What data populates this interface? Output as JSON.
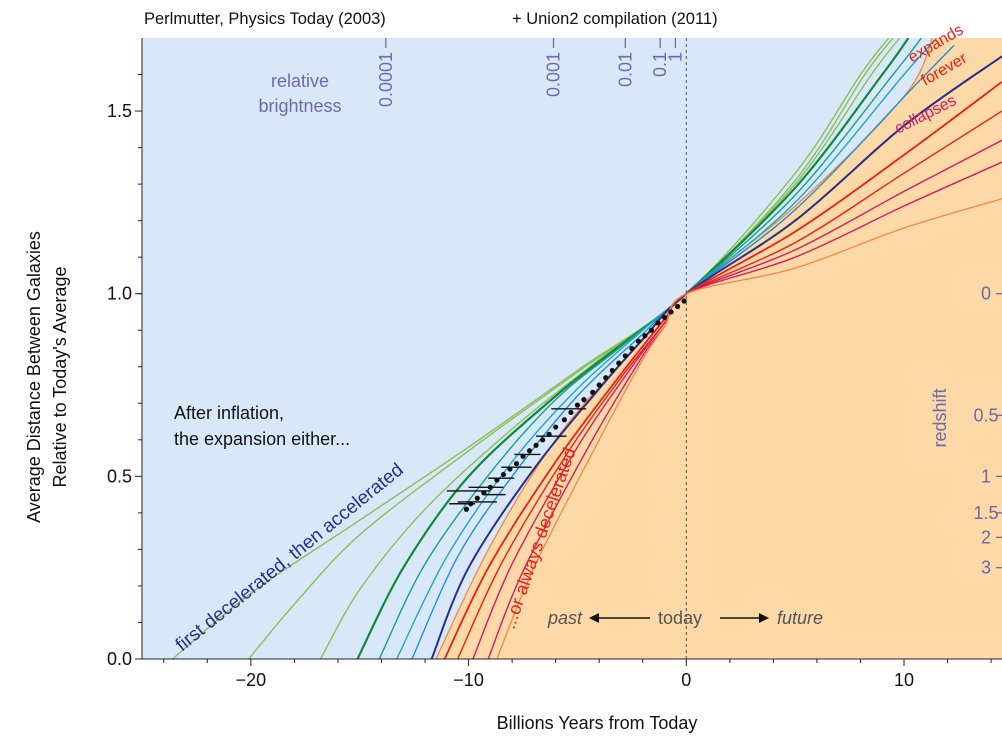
{
  "titles": {
    "left": "Perlmutter, Physics Today (2003)",
    "right": "+ Union2 compilation (2011)"
  },
  "colors": {
    "past_region": "#d9e8f8",
    "future_region": "#fcd9a6",
    "annotation_blue": "#6e6aa8",
    "decelerated_red": "#e8201a",
    "accelerated_navy": "#2a2f8c",
    "collapses_magenta": "#d81b60"
  },
  "chart_data": {
    "type": "line",
    "xlabel": "Billions Years from Today",
    "ylabel": [
      "Average Distance Between Galaxies",
      "Relative to Today's Average"
    ],
    "xlim": [
      -25,
      14.5
    ],
    "ylim": [
      0.0,
      1.7
    ],
    "x_ticks": [
      -20,
      -10,
      0,
      10
    ],
    "x_tick_labels": [
      "−20",
      "−10",
      "0",
      "10"
    ],
    "y_ticks": [
      0.0,
      0.5,
      1.0,
      1.5
    ],
    "y_tick_labels": [
      "0.0",
      "0.5",
      "1.0",
      "1.5"
    ],
    "grid": false,
    "today_marker_x": 0,
    "series": [
      {
        "color": "#88c057",
        "width": 1.4,
        "points": [
          [
            -23.6,
            0
          ],
          [
            -20,
            0.18
          ],
          [
            -15,
            0.38
          ],
          [
            -10,
            0.58
          ],
          [
            -5,
            0.79
          ],
          [
            0,
            1
          ],
          [
            5,
            1.33
          ],
          [
            8,
            1.6
          ],
          [
            9.3,
            1.7
          ]
        ]
      },
      {
        "color": "#88c057",
        "width": 1.4,
        "points": [
          [
            -20.1,
            0
          ],
          [
            -18,
            0.15
          ],
          [
            -15,
            0.34
          ],
          [
            -10,
            0.57
          ],
          [
            -5,
            0.785
          ],
          [
            0,
            1
          ],
          [
            5,
            1.31
          ],
          [
            8.2,
            1.6
          ],
          [
            9.5,
            1.7
          ]
        ]
      },
      {
        "color": "#88c057",
        "width": 1.4,
        "points": [
          [
            -16.8,
            0
          ],
          [
            -15,
            0.19
          ],
          [
            -12,
            0.41
          ],
          [
            -8,
            0.63
          ],
          [
            -4,
            0.82
          ],
          [
            0,
            1
          ],
          [
            5,
            1.3
          ],
          [
            8.5,
            1.6
          ],
          [
            9.8,
            1.7
          ]
        ]
      },
      {
        "color": "#0f8a3c",
        "width": 2.2,
        "points": [
          [
            -15.1,
            0
          ],
          [
            -13,
            0.25
          ],
          [
            -10,
            0.5
          ],
          [
            -6,
            0.72
          ],
          [
            -3,
            0.86
          ],
          [
            0,
            1
          ],
          [
            5,
            1.29
          ],
          [
            9,
            1.6
          ],
          [
            10.2,
            1.7
          ]
        ]
      },
      {
        "color": "#15a08a",
        "width": 1.4,
        "points": [
          [
            -14.1,
            0
          ],
          [
            -12,
            0.26
          ],
          [
            -9,
            0.51
          ],
          [
            -6,
            0.71
          ],
          [
            -3,
            0.855
          ],
          [
            0,
            1
          ],
          [
            5,
            1.27
          ],
          [
            9.5,
            1.6
          ],
          [
            10.8,
            1.7
          ]
        ]
      },
      {
        "color": "#1aa7c9",
        "width": 1.4,
        "points": [
          [
            -13.3,
            0
          ],
          [
            -11,
            0.28
          ],
          [
            -8,
            0.54
          ],
          [
            -5,
            0.74
          ],
          [
            -2,
            0.9
          ],
          [
            0,
            1
          ],
          [
            5,
            1.25
          ],
          [
            10,
            1.6
          ],
          [
            11.5,
            1.7
          ]
        ]
      },
      {
        "color": "#1e90d6",
        "width": 1.4,
        "points": [
          [
            -12.6,
            0
          ],
          [
            -10.5,
            0.28
          ],
          [
            -8,
            0.5
          ],
          [
            -5,
            0.72
          ],
          [
            -2,
            0.89
          ],
          [
            0,
            1
          ],
          [
            5,
            1.23
          ],
          [
            10.5,
            1.57
          ],
          [
            12.3,
            1.68
          ]
        ]
      },
      {
        "color": "#2a2f8c",
        "width": 2.0,
        "points": [
          [
            -11.7,
            0
          ],
          [
            -10,
            0.25
          ],
          [
            -7,
            0.52
          ],
          [
            -4,
            0.74
          ],
          [
            -2,
            0.875
          ],
          [
            0,
            1
          ],
          [
            5,
            1.2
          ],
          [
            10,
            1.46
          ],
          [
            14.5,
            1.65
          ]
        ]
      },
      {
        "color": "#e8201a",
        "width": 1.8,
        "points": [
          [
            -11.1,
            0
          ],
          [
            -9,
            0.26
          ],
          [
            -6,
            0.54
          ],
          [
            -3,
            0.78
          ],
          [
            -1,
            0.93
          ],
          [
            0,
            1
          ],
          [
            5,
            1.17
          ],
          [
            10,
            1.38
          ],
          [
            14.5,
            1.58
          ]
        ]
      },
      {
        "color": "#e8201a",
        "width": 1.4,
        "points": [
          [
            -10.5,
            0
          ],
          [
            -8.5,
            0.26
          ],
          [
            -5.5,
            0.56
          ],
          [
            -3,
            0.77
          ],
          [
            -1,
            0.92
          ],
          [
            0,
            1
          ],
          [
            5,
            1.14
          ],
          [
            10,
            1.33
          ],
          [
            14.5,
            1.5
          ]
        ]
      },
      {
        "color": "#d81b60",
        "width": 1.4,
        "points": [
          [
            -9.8,
            0
          ],
          [
            -8,
            0.26
          ],
          [
            -5,
            0.58
          ],
          [
            -2.5,
            0.8
          ],
          [
            -1,
            0.92
          ],
          [
            0,
            1
          ],
          [
            5,
            1.12
          ],
          [
            10,
            1.28
          ],
          [
            14.5,
            1.42
          ]
        ]
      },
      {
        "color": "#d81b60",
        "width": 1.4,
        "points": [
          [
            -9.1,
            0
          ],
          [
            -7.5,
            0.24
          ],
          [
            -4.5,
            0.58
          ],
          [
            -2,
            0.83
          ],
          [
            -1,
            0.91
          ],
          [
            0,
            1
          ],
          [
            5,
            1.1
          ],
          [
            10,
            1.24
          ],
          [
            14.5,
            1.36
          ]
        ]
      },
      {
        "color": "#f2874a",
        "width": 1.3,
        "points": [
          [
            -8.7,
            0
          ],
          [
            -7,
            0.25
          ],
          [
            -4,
            0.6
          ],
          [
            -2,
            0.82
          ],
          [
            -1,
            0.91
          ],
          [
            0,
            1
          ],
          [
            5,
            1.07
          ],
          [
            10,
            1.18
          ],
          [
            14.5,
            1.26
          ]
        ]
      }
    ],
    "future_boundary": {
      "color": "#f2874a",
      "points": [
        [
          -11.5,
          0
        ],
        [
          -9,
          0.31
        ],
        [
          -6,
          0.6
        ],
        [
          -3,
          0.81
        ],
        [
          0,
          1
        ],
        [
          5,
          1.24
        ],
        [
          10,
          1.54
        ],
        [
          11.3,
          1.7
        ]
      ]
    },
    "observations": {
      "dots": [
        [
          -0.1,
          0.98
        ],
        [
          -0.4,
          0.965
        ],
        [
          -0.7,
          0.95
        ],
        [
          -1.0,
          0.935
        ],
        [
          -1.3,
          0.92
        ],
        [
          -1.6,
          0.9
        ],
        [
          -1.9,
          0.885
        ],
        [
          -2.2,
          0.87
        ],
        [
          -2.5,
          0.85
        ],
        [
          -2.8,
          0.83
        ],
        [
          -3.1,
          0.81
        ],
        [
          -3.4,
          0.79
        ],
        [
          -3.7,
          0.77
        ],
        [
          -4.0,
          0.75
        ],
        [
          -4.3,
          0.73
        ],
        [
          -4.7,
          0.71
        ],
        [
          -5.0,
          0.695
        ],
        [
          -5.3,
          0.675
        ],
        [
          -5.6,
          0.655
        ],
        [
          -6.0,
          0.635
        ],
        [
          -6.3,
          0.615
        ],
        [
          -6.6,
          0.6
        ],
        [
          -6.9,
          0.585
        ],
        [
          -7.2,
          0.57
        ],
        [
          -7.5,
          0.555
        ],
        [
          -7.8,
          0.535
        ],
        [
          -8.1,
          0.52
        ],
        [
          -8.4,
          0.505
        ],
        [
          -8.7,
          0.49
        ],
        [
          -9.0,
          0.47
        ],
        [
          -9.3,
          0.455
        ],
        [
          -9.6,
          0.44
        ],
        [
          -9.9,
          0.425
        ],
        [
          -10.1,
          0.41
        ]
      ],
      "error_bars": [
        [
          -5.4,
          0.685,
          0.8
        ],
        [
          -6.2,
          0.61,
          0.7
        ],
        [
          -7.3,
          0.56,
          0.6
        ],
        [
          -7.8,
          0.525,
          0.7
        ],
        [
          -8.5,
          0.495,
          0.6
        ],
        [
          -9.2,
          0.47,
          0.8
        ],
        [
          -10.0,
          0.46,
          1.0
        ],
        [
          -9.6,
          0.43,
          0.9
        ],
        [
          -10.3,
          0.425,
          0.6
        ],
        [
          -8.8,
          0.45,
          0.5
        ]
      ]
    },
    "brightness_labels": [
      "0.0001",
      "0.001",
      "0.01",
      "0.1",
      "1"
    ],
    "brightness_tick_x": [
      -13.8,
      -6.1,
      -2.8,
      -1.2,
      -0.5
    ],
    "redshift_labels": [
      "0",
      "0.5",
      "1",
      "1.5",
      "2",
      "3"
    ],
    "redshift_y": [
      1.0,
      0.667,
      0.5,
      0.4,
      0.333,
      0.25
    ],
    "annotations": {
      "relative_brightness": [
        "relative",
        "brightness"
      ],
      "redshift": "redshift",
      "after_inflation": [
        "After inflation,",
        "the expansion either..."
      ],
      "first_decelerated": "first decelerated, then accelerated",
      "or_always_decelerated": "...or always decelerated",
      "expands_forever": [
        "expands",
        "forever"
      ],
      "collapses": "collapses",
      "past": "past",
      "today": "today",
      "future": "future"
    }
  }
}
